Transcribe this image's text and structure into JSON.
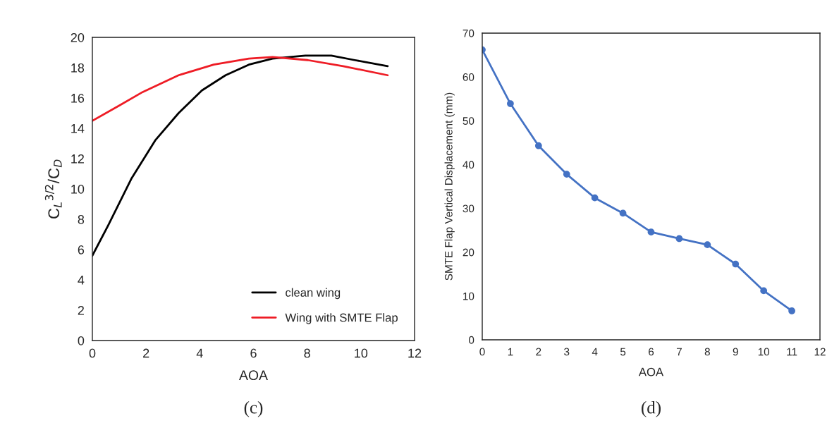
{
  "chart_data": [
    {
      "type": "line",
      "xlabel": "AOA",
      "ylabel": "C$_{L}$$^{3/2}$/C$_{D}$",
      "xlim": [
        0,
        12
      ],
      "ylim": [
        0,
        20
      ],
      "xticks": [
        0,
        2,
        4,
        6,
        8,
        10,
        12
      ],
      "yticks": [
        0,
        2,
        4,
        6,
        8,
        10,
        12,
        14,
        16,
        18,
        20
      ],
      "grid": false,
      "legend": "bottom right",
      "marker": "none",
      "line_style": "solid",
      "series": [
        {
          "name": "clean wing",
          "color": "#000000",
          "x": [
            0,
            0.59,
            1.46,
            2.34,
            3.21,
            4.08,
            4.96,
            5.83,
            6.71,
            7.93,
            8.9,
            9.77,
            11
          ],
          "values": [
            5.6,
            7.6,
            10.7,
            13.2,
            15.0,
            16.5,
            17.5,
            18.2,
            18.6,
            18.8,
            18.8,
            18.5,
            18.1
          ]
        },
        {
          "name": "Wing with SMTE Flap",
          "color": "#ee1c25",
          "x": [
            0,
            1.0,
            1.88,
            3.21,
            4.52,
            5.83,
            6.71,
            8.02,
            9.34,
            11
          ],
          "values": [
            14.5,
            15.5,
            16.4,
            17.5,
            18.2,
            18.6,
            18.7,
            18.5,
            18.1,
            17.5
          ]
        }
      ],
      "annotations": [
        "(c)"
      ]
    },
    {
      "type": "line",
      "xlabel": "AOA",
      "ylabel": "SMTE Flap Vertical Displacement (mm)",
      "xlim": [
        0,
        12
      ],
      "ylim": [
        0,
        70
      ],
      "xticks": [
        0,
        1,
        2,
        3,
        4,
        5,
        6,
        7,
        8,
        9,
        10,
        11,
        12
      ],
      "yticks": [
        0,
        10,
        20,
        30,
        40,
        50,
        60,
        70
      ],
      "grid": false,
      "legend": false,
      "marker": "circle",
      "line_style": "solid",
      "series": [
        {
          "color": "#4472c4",
          "x": [
            0,
            1,
            2,
            3,
            4,
            5,
            6,
            7,
            8,
            9,
            10,
            11
          ],
          "values": [
            66.2,
            53.9,
            44.3,
            37.8,
            32.4,
            28.9,
            24.6,
            23.1,
            21.7,
            17.3,
            11.2,
            6.6
          ]
        }
      ],
      "annotations": [
        "(d)"
      ]
    }
  ]
}
